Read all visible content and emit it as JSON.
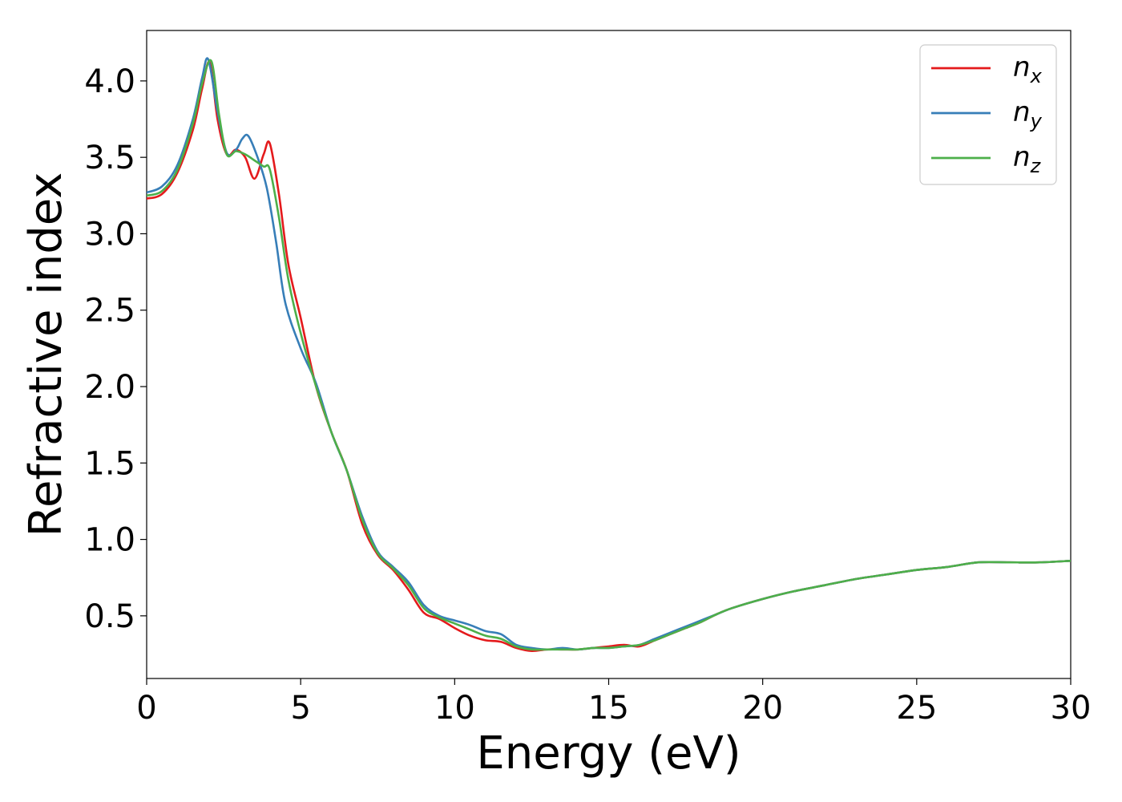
{
  "chart_data": {
    "type": "line",
    "title": "",
    "xlabel": "Energy (eV)",
    "ylabel": "Refractive index",
    "xlim": [
      0,
      30
    ],
    "ylim": [
      0.09,
      4.33
    ],
    "xticks": [
      0,
      5,
      10,
      15,
      20,
      25,
      30
    ],
    "xtick_labels": [
      "0",
      "5",
      "10",
      "15",
      "20",
      "25",
      "30"
    ],
    "yticks": [
      0.5,
      1.0,
      1.5,
      2.0,
      2.5,
      3.0,
      3.5,
      4.0
    ],
    "ytick_labels": [
      "0.5",
      "1.0",
      "1.5",
      "2.0",
      "2.5",
      "3.0",
      "3.5",
      "4.0"
    ],
    "grid": false,
    "legend_position": "top-right",
    "series": [
      {
        "name": "n",
        "subscript": "x",
        "color": "#e41a1c",
        "x": [
          0,
          0.5,
          1,
          1.5,
          1.8,
          2.05,
          2.3,
          2.6,
          2.9,
          3.2,
          3.5,
          3.8,
          4.0,
          4.3,
          4.6,
          5,
          5.5,
          6,
          6.5,
          7,
          7.5,
          8,
          8.5,
          9,
          9.5,
          10,
          10.5,
          11,
          11.5,
          12,
          12.5,
          13,
          13.5,
          14,
          14.5,
          15,
          15.5,
          16,
          16.5,
          17,
          17.5,
          18,
          18.5,
          19,
          20,
          21,
          22,
          23,
          24,
          25,
          26,
          27,
          28,
          29,
          30
        ],
        "y": [
          3.23,
          3.26,
          3.4,
          3.68,
          3.95,
          4.12,
          3.75,
          3.52,
          3.55,
          3.5,
          3.36,
          3.52,
          3.59,
          3.25,
          2.8,
          2.45,
          2.0,
          1.7,
          1.45,
          1.1,
          0.9,
          0.8,
          0.67,
          0.52,
          0.48,
          0.42,
          0.37,
          0.34,
          0.33,
          0.29,
          0.27,
          0.28,
          0.28,
          0.28,
          0.29,
          0.3,
          0.31,
          0.3,
          0.34,
          0.38,
          0.42,
          0.46,
          0.51,
          0.55,
          0.61,
          0.66,
          0.7,
          0.74,
          0.77,
          0.8,
          0.82,
          0.85,
          0.85,
          0.85,
          0.86
        ]
      },
      {
        "name": "n",
        "subscript": "y",
        "color": "#377eb8",
        "x": [
          0,
          0.5,
          1,
          1.5,
          1.8,
          2.0,
          2.3,
          2.6,
          2.9,
          3.1,
          3.3,
          3.6,
          3.9,
          4.2,
          4.5,
          5,
          5.5,
          6,
          6.5,
          7,
          7.5,
          8,
          8.5,
          9,
          9.5,
          10,
          10.5,
          11,
          11.5,
          12,
          12.5,
          13,
          13.5,
          14,
          14.5,
          15,
          15.5,
          16,
          16.5,
          17,
          17.5,
          18,
          18.5,
          19,
          20,
          21,
          22,
          23,
          24,
          25,
          26,
          27,
          28,
          29,
          30
        ],
        "y": [
          3.27,
          3.31,
          3.45,
          3.75,
          4.02,
          4.14,
          3.8,
          3.53,
          3.55,
          3.62,
          3.64,
          3.5,
          3.3,
          2.95,
          2.55,
          2.25,
          2.02,
          1.7,
          1.45,
          1.15,
          0.92,
          0.82,
          0.72,
          0.57,
          0.5,
          0.47,
          0.44,
          0.4,
          0.38,
          0.31,
          0.29,
          0.28,
          0.29,
          0.28,
          0.29,
          0.29,
          0.3,
          0.31,
          0.35,
          0.39,
          0.43,
          0.47,
          0.51,
          0.55,
          0.61,
          0.66,
          0.7,
          0.74,
          0.77,
          0.8,
          0.82,
          0.85,
          0.85,
          0.85,
          0.86
        ]
      },
      {
        "name": "n",
        "subscript": "z",
        "color": "#4daf4a",
        "x": [
          0,
          0.5,
          1,
          1.5,
          1.8,
          2.1,
          2.35,
          2.6,
          2.9,
          3.2,
          3.5,
          3.8,
          4.0,
          4.3,
          4.6,
          5,
          5.5,
          6,
          6.5,
          7,
          7.5,
          8,
          8.5,
          9,
          9.5,
          10,
          10.5,
          11,
          11.5,
          12,
          12.5,
          13,
          13.5,
          14,
          14.5,
          15,
          15.5,
          16,
          16.5,
          17,
          17.5,
          18,
          18.5,
          19,
          20,
          21,
          22,
          23,
          24,
          25,
          26,
          27,
          28,
          29,
          30
        ],
        "y": [
          3.25,
          3.28,
          3.42,
          3.72,
          3.98,
          4.13,
          3.78,
          3.52,
          3.54,
          3.52,
          3.48,
          3.44,
          3.42,
          3.1,
          2.7,
          2.35,
          2.0,
          1.7,
          1.45,
          1.13,
          0.91,
          0.81,
          0.7,
          0.55,
          0.49,
          0.45,
          0.41,
          0.37,
          0.35,
          0.3,
          0.28,
          0.28,
          0.28,
          0.28,
          0.29,
          0.29,
          0.3,
          0.31,
          0.34,
          0.38,
          0.42,
          0.46,
          0.51,
          0.55,
          0.61,
          0.66,
          0.7,
          0.74,
          0.77,
          0.8,
          0.82,
          0.85,
          0.85,
          0.85,
          0.86
        ]
      }
    ]
  }
}
